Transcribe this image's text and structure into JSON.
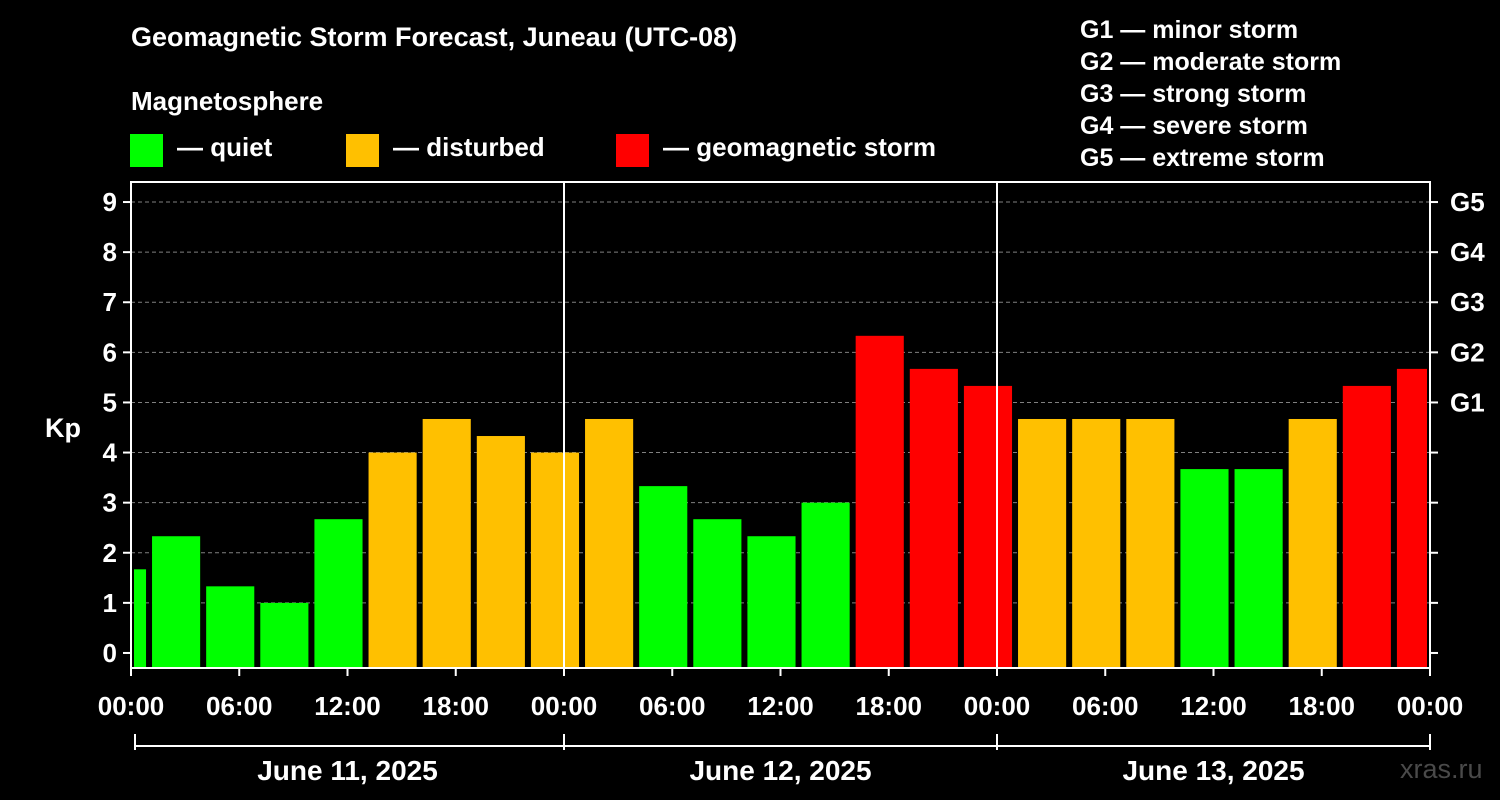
{
  "colors": {
    "background": "#000000",
    "quiet": "#00ff00",
    "disturbed": "#ffc000",
    "storm": "#ff0000",
    "axis": "#ffffff",
    "grid": "#808080"
  },
  "legend": {
    "heading": "Magnetosphere",
    "items": [
      {
        "label": "— quiet",
        "color": "#00ff00"
      },
      {
        "label": "— disturbed",
        "color": "#ffc000"
      },
      {
        "label": "— geomagnetic storm",
        "color": "#ff0000"
      }
    ]
  },
  "g_scale": [
    "G1 — minor storm",
    "G2 — moderate storm",
    "G3 — strong storm",
    "G4 — severe storm",
    "G5 — extreme storm"
  ],
  "watermark": "xras.ru",
  "chart_data": {
    "type": "bar",
    "title": "Geomagnetic Storm Forecast, Juneau (UTC-08)",
    "ylabel": "Kp",
    "ylim": [
      -0.3,
      9.4
    ],
    "yticks": [
      0,
      1,
      2,
      3,
      4,
      5,
      6,
      7,
      8,
      9
    ],
    "right_axis": [
      {
        "kp": 5,
        "label": "G1"
      },
      {
        "kp": 6,
        "label": "G2"
      },
      {
        "kp": 7,
        "label": "G3"
      },
      {
        "kp": 8,
        "label": "G4"
      },
      {
        "kp": 9,
        "label": "G5"
      }
    ],
    "x_range_hours": [
      0,
      72
    ],
    "xticks": [
      {
        "h": 0,
        "label": "00:00"
      },
      {
        "h": 6,
        "label": "06:00"
      },
      {
        "h": 12,
        "label": "12:00"
      },
      {
        "h": 18,
        "label": "18:00"
      },
      {
        "h": 24,
        "label": "00:00"
      },
      {
        "h": 30,
        "label": "06:00"
      },
      {
        "h": 36,
        "label": "12:00"
      },
      {
        "h": 42,
        "label": "18:00"
      },
      {
        "h": 48,
        "label": "00:00"
      },
      {
        "h": 54,
        "label": "06:00"
      },
      {
        "h": 60,
        "label": "12:00"
      },
      {
        "h": 66,
        "label": "18:00"
      },
      {
        "h": 72,
        "label": "00:00"
      }
    ],
    "day_labels": [
      {
        "start_h": 0,
        "end_h": 24,
        "label": "June 11, 2025"
      },
      {
        "start_h": 24,
        "end_h": 48,
        "label": "June 12, 2025"
      },
      {
        "start_h": 48,
        "end_h": 72,
        "label": "June 13, 2025"
      }
    ],
    "day_separators_h": [
      24,
      48
    ],
    "bars": [
      {
        "start_h": 0,
        "end_h": 1,
        "kp": 1.67,
        "level": "quiet"
      },
      {
        "start_h": 1,
        "end_h": 4,
        "kp": 2.33,
        "level": "quiet"
      },
      {
        "start_h": 4,
        "end_h": 7,
        "kp": 1.33,
        "level": "quiet"
      },
      {
        "start_h": 7,
        "end_h": 10,
        "kp": 1.0,
        "level": "quiet"
      },
      {
        "start_h": 10,
        "end_h": 13,
        "kp": 2.67,
        "level": "quiet"
      },
      {
        "start_h": 13,
        "end_h": 16,
        "kp": 4.0,
        "level": "disturbed"
      },
      {
        "start_h": 16,
        "end_h": 19,
        "kp": 4.67,
        "level": "disturbed"
      },
      {
        "start_h": 19,
        "end_h": 22,
        "kp": 4.33,
        "level": "disturbed"
      },
      {
        "start_h": 22,
        "end_h": 25,
        "kp": 4.0,
        "level": "disturbed"
      },
      {
        "start_h": 25,
        "end_h": 28,
        "kp": 4.67,
        "level": "disturbed"
      },
      {
        "start_h": 28,
        "end_h": 31,
        "kp": 3.33,
        "level": "quiet"
      },
      {
        "start_h": 31,
        "end_h": 34,
        "kp": 2.67,
        "level": "quiet"
      },
      {
        "start_h": 34,
        "end_h": 37,
        "kp": 2.33,
        "level": "quiet"
      },
      {
        "start_h": 37,
        "end_h": 40,
        "kp": 3.0,
        "level": "quiet"
      },
      {
        "start_h": 40,
        "end_h": 43,
        "kp": 6.33,
        "level": "storm"
      },
      {
        "start_h": 43,
        "end_h": 46,
        "kp": 5.67,
        "level": "storm"
      },
      {
        "start_h": 46,
        "end_h": 49,
        "kp": 5.33,
        "level": "storm"
      },
      {
        "start_h": 49,
        "end_h": 52,
        "kp": 4.67,
        "level": "disturbed"
      },
      {
        "start_h": 52,
        "end_h": 55,
        "kp": 4.67,
        "level": "disturbed"
      },
      {
        "start_h": 55,
        "end_h": 58,
        "kp": 4.67,
        "level": "disturbed"
      },
      {
        "start_h": 58,
        "end_h": 61,
        "kp": 3.67,
        "level": "quiet"
      },
      {
        "start_h": 61,
        "end_h": 64,
        "kp": 3.67,
        "level": "quiet"
      },
      {
        "start_h": 64,
        "end_h": 67,
        "kp": 4.67,
        "level": "disturbed"
      },
      {
        "start_h": 67,
        "end_h": 70,
        "kp": 5.33,
        "level": "storm"
      },
      {
        "start_h": 70,
        "end_h": 72,
        "kp": 5.67,
        "level": "storm"
      }
    ]
  }
}
